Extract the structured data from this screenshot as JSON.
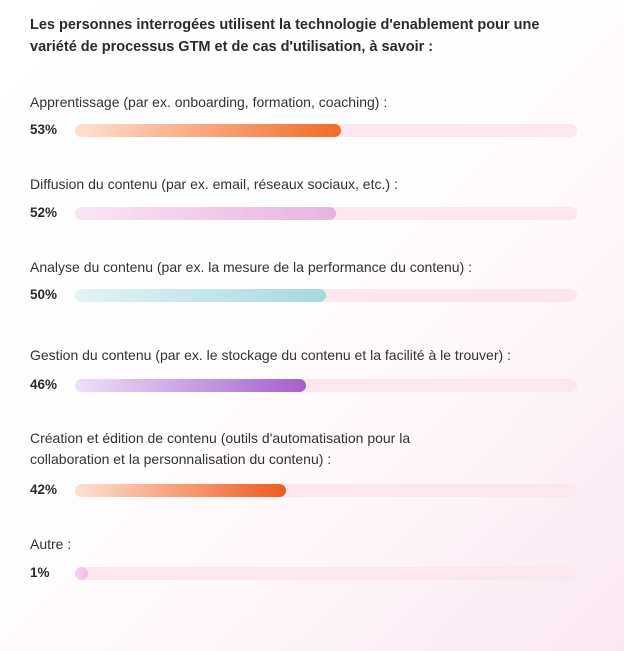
{
  "chart_data": {
    "type": "bar",
    "orientation": "horizontal",
    "title": "Les personnes interrogées utilisent la technologie d'enablement pour une variété de processus GTM et de cas d'utilisation, à savoir :",
    "categories": [
      "Apprentissage (par ex. onboarding, formation, coaching) :",
      "Diffusion du contenu (par ex. email, réseaux sociaux, etc.) :",
      "Analyse du contenu (par ex. la mesure de la performance du contenu) :",
      "Gestion du contenu (par ex. le stockage du contenu et la facilité à le trouver) :",
      "Création et édition de contenu (outils d'automatisation pour la collaboration et la personnalisation du contenu) :",
      "Autre :"
    ],
    "values": [
      53,
      52,
      50,
      46,
      42,
      1
    ],
    "value_labels": [
      "53%",
      "52%",
      "50%",
      "46%",
      "42%",
      "1%"
    ],
    "xlim": [
      0,
      100
    ],
    "grid": false,
    "bar_colors": [
      [
        "#fde1d2",
        "#f36a26"
      ],
      [
        "#f8e6f4",
        "#e8b3df"
      ],
      [
        "#e4f4f6",
        "#a6d9de"
      ],
      [
        "#ede2f6",
        "#a45fcf"
      ],
      [
        "#fde1d2",
        "#f05a20"
      ],
      [
        "#f6d4ef",
        "#efbfe7"
      ]
    ],
    "track_color": "#fbe8ef"
  }
}
